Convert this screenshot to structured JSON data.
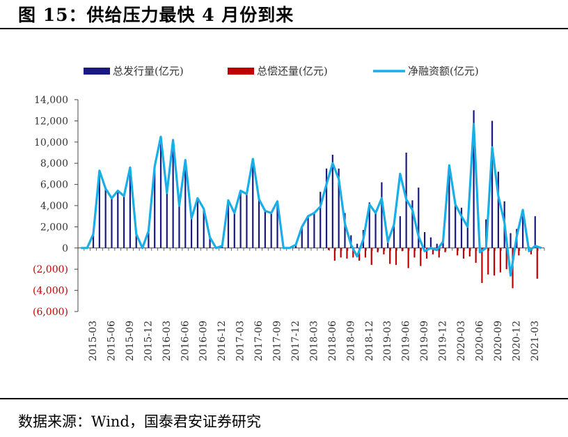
{
  "title": "图 15：供给压力最快 4 月份到来",
  "source": "数据来源：Wind，国泰君安证券研究",
  "colors": {
    "issuance": "#1a1a7e",
    "repayment": "#c00000",
    "net": "#19aee6",
    "negative_tick": "#c00000"
  },
  "chart_data": {
    "type": "bar+line",
    "legend": [
      "总发行量(亿元)",
      "总偿还量(亿元)",
      "净融资额(亿元)"
    ],
    "legend_position": "top",
    "ylim": [
      -6000,
      14000
    ],
    "yticks": [
      14000,
      12000,
      10000,
      8000,
      6000,
      4000,
      2000,
      0,
      -2000,
      -4000,
      -6000
    ],
    "ytick_labels": [
      "14,000",
      "12,000",
      "10,000",
      "8,000",
      "6,000",
      "4,000",
      "2,000",
      "0",
      "(2,000)",
      "(4,000)",
      "(6,000)"
    ],
    "xtick_labels": [
      "2015-03",
      "2015-06",
      "2015-09",
      "2015-12",
      "2016-03",
      "2016-06",
      "2016-09",
      "2016-12",
      "2017-03",
      "2017-06",
      "2017-09",
      "2017-12",
      "2018-03",
      "2018-06",
      "2018-09",
      "2018-12",
      "2019-03",
      "2019-06",
      "2019-09",
      "2019-12",
      "2020-03",
      "2020-06",
      "2020-09",
      "2020-12",
      "2021-03"
    ],
    "categories": [
      "2015-01",
      "2015-02",
      "2015-03",
      "2015-04",
      "2015-05",
      "2015-06",
      "2015-07",
      "2015-08",
      "2015-09",
      "2015-10",
      "2015-11",
      "2015-12",
      "2016-01",
      "2016-02",
      "2016-03",
      "2016-04",
      "2016-05",
      "2016-06",
      "2016-07",
      "2016-08",
      "2016-09",
      "2016-10",
      "2016-11",
      "2016-12",
      "2017-01",
      "2017-02",
      "2017-03",
      "2017-04",
      "2017-05",
      "2017-06",
      "2017-07",
      "2017-08",
      "2017-09",
      "2017-10",
      "2017-11",
      "2017-12",
      "2018-01",
      "2018-02",
      "2018-03",
      "2018-04",
      "2018-05",
      "2018-06",
      "2018-07",
      "2018-08",
      "2018-09",
      "2018-10",
      "2018-11",
      "2018-12",
      "2019-01",
      "2019-02",
      "2019-03",
      "2019-04",
      "2019-05",
      "2019-06",
      "2019-07",
      "2019-08",
      "2019-09",
      "2019-10",
      "2019-11",
      "2019-12",
      "2020-01",
      "2020-02",
      "2020-03",
      "2020-04",
      "2020-05",
      "2020-06",
      "2020-07",
      "2020-08",
      "2020-09",
      "2020-10",
      "2020-11",
      "2020-12",
      "2021-01",
      "2021-02",
      "2021-03",
      "2021-04"
    ],
    "series": [
      {
        "name": "总发行量(亿元)",
        "type": "bar",
        "values": [
          0,
          0,
          1300,
          7300,
          5600,
          4700,
          5400,
          4900,
          7600,
          1300,
          0,
          1600,
          7700,
          10500,
          5200,
          10200,
          4000,
          8300,
          2800,
          4700,
          3700,
          1000,
          0,
          200,
          4500,
          3300,
          5400,
          5100,
          8400,
          4600,
          3500,
          3300,
          4400,
          0,
          0,
          300,
          2000,
          3000,
          3300,
          5300,
          7500,
          8800,
          7500,
          3300,
          1200,
          400,
          1700,
          4300,
          3400,
          6200,
          500,
          2100,
          3000,
          9000,
          4500,
          5700,
          1500,
          1000,
          400,
          700,
          7800,
          4100,
          3800,
          2700,
          13000,
          100,
          2700,
          12000,
          7200,
          4400,
          1400,
          1800,
          3600,
          100,
          3000,
          0
        ]
      },
      {
        "name": "总偿还量(亿元)",
        "type": "bar",
        "values": [
          0,
          0,
          0,
          0,
          0,
          0,
          0,
          0,
          0,
          0,
          0,
          0,
          0,
          0,
          0,
          0,
          0,
          0,
          0,
          0,
          0,
          0,
          0,
          0,
          0,
          0,
          0,
          0,
          0,
          0,
          0,
          0,
          0,
          0,
          0,
          0,
          0,
          0,
          0,
          0,
          -200,
          -1200,
          -900,
          -1000,
          -900,
          -1200,
          -900,
          -1600,
          -400,
          -600,
          -1500,
          -1600,
          -300,
          -1900,
          -900,
          -1700,
          -1000,
          -600,
          -900,
          -400,
          0,
          -700,
          -1000,
          -800,
          -1400,
          -3300,
          -2500,
          -2600,
          -2300,
          -2000,
          -3800,
          -700,
          0,
          -600,
          -2900,
          0
        ]
      },
      {
        "name": "净融资额(亿元)",
        "type": "line",
        "values": [
          0,
          0,
          1300,
          7300,
          5600,
          4700,
          5400,
          4900,
          7600,
          1300,
          0,
          1600,
          7700,
          10500,
          5200,
          10200,
          4000,
          8300,
          2800,
          4700,
          3700,
          1000,
          0,
          200,
          4500,
          3300,
          5400,
          5100,
          8400,
          4600,
          3500,
          3300,
          4400,
          0,
          0,
          300,
          2000,
          3000,
          3300,
          3900,
          6000,
          8000,
          6500,
          2300,
          300,
          -800,
          800,
          4100,
          3300,
          4700,
          600,
          2200,
          7000,
          4600,
          3600,
          1100,
          -300,
          0,
          -200,
          600,
          7800,
          4100,
          3000,
          2000,
          11700,
          -400,
          0,
          9500,
          4900,
          2400,
          -2600,
          1100,
          3600,
          -300,
          200,
          0
        ]
      }
    ]
  }
}
